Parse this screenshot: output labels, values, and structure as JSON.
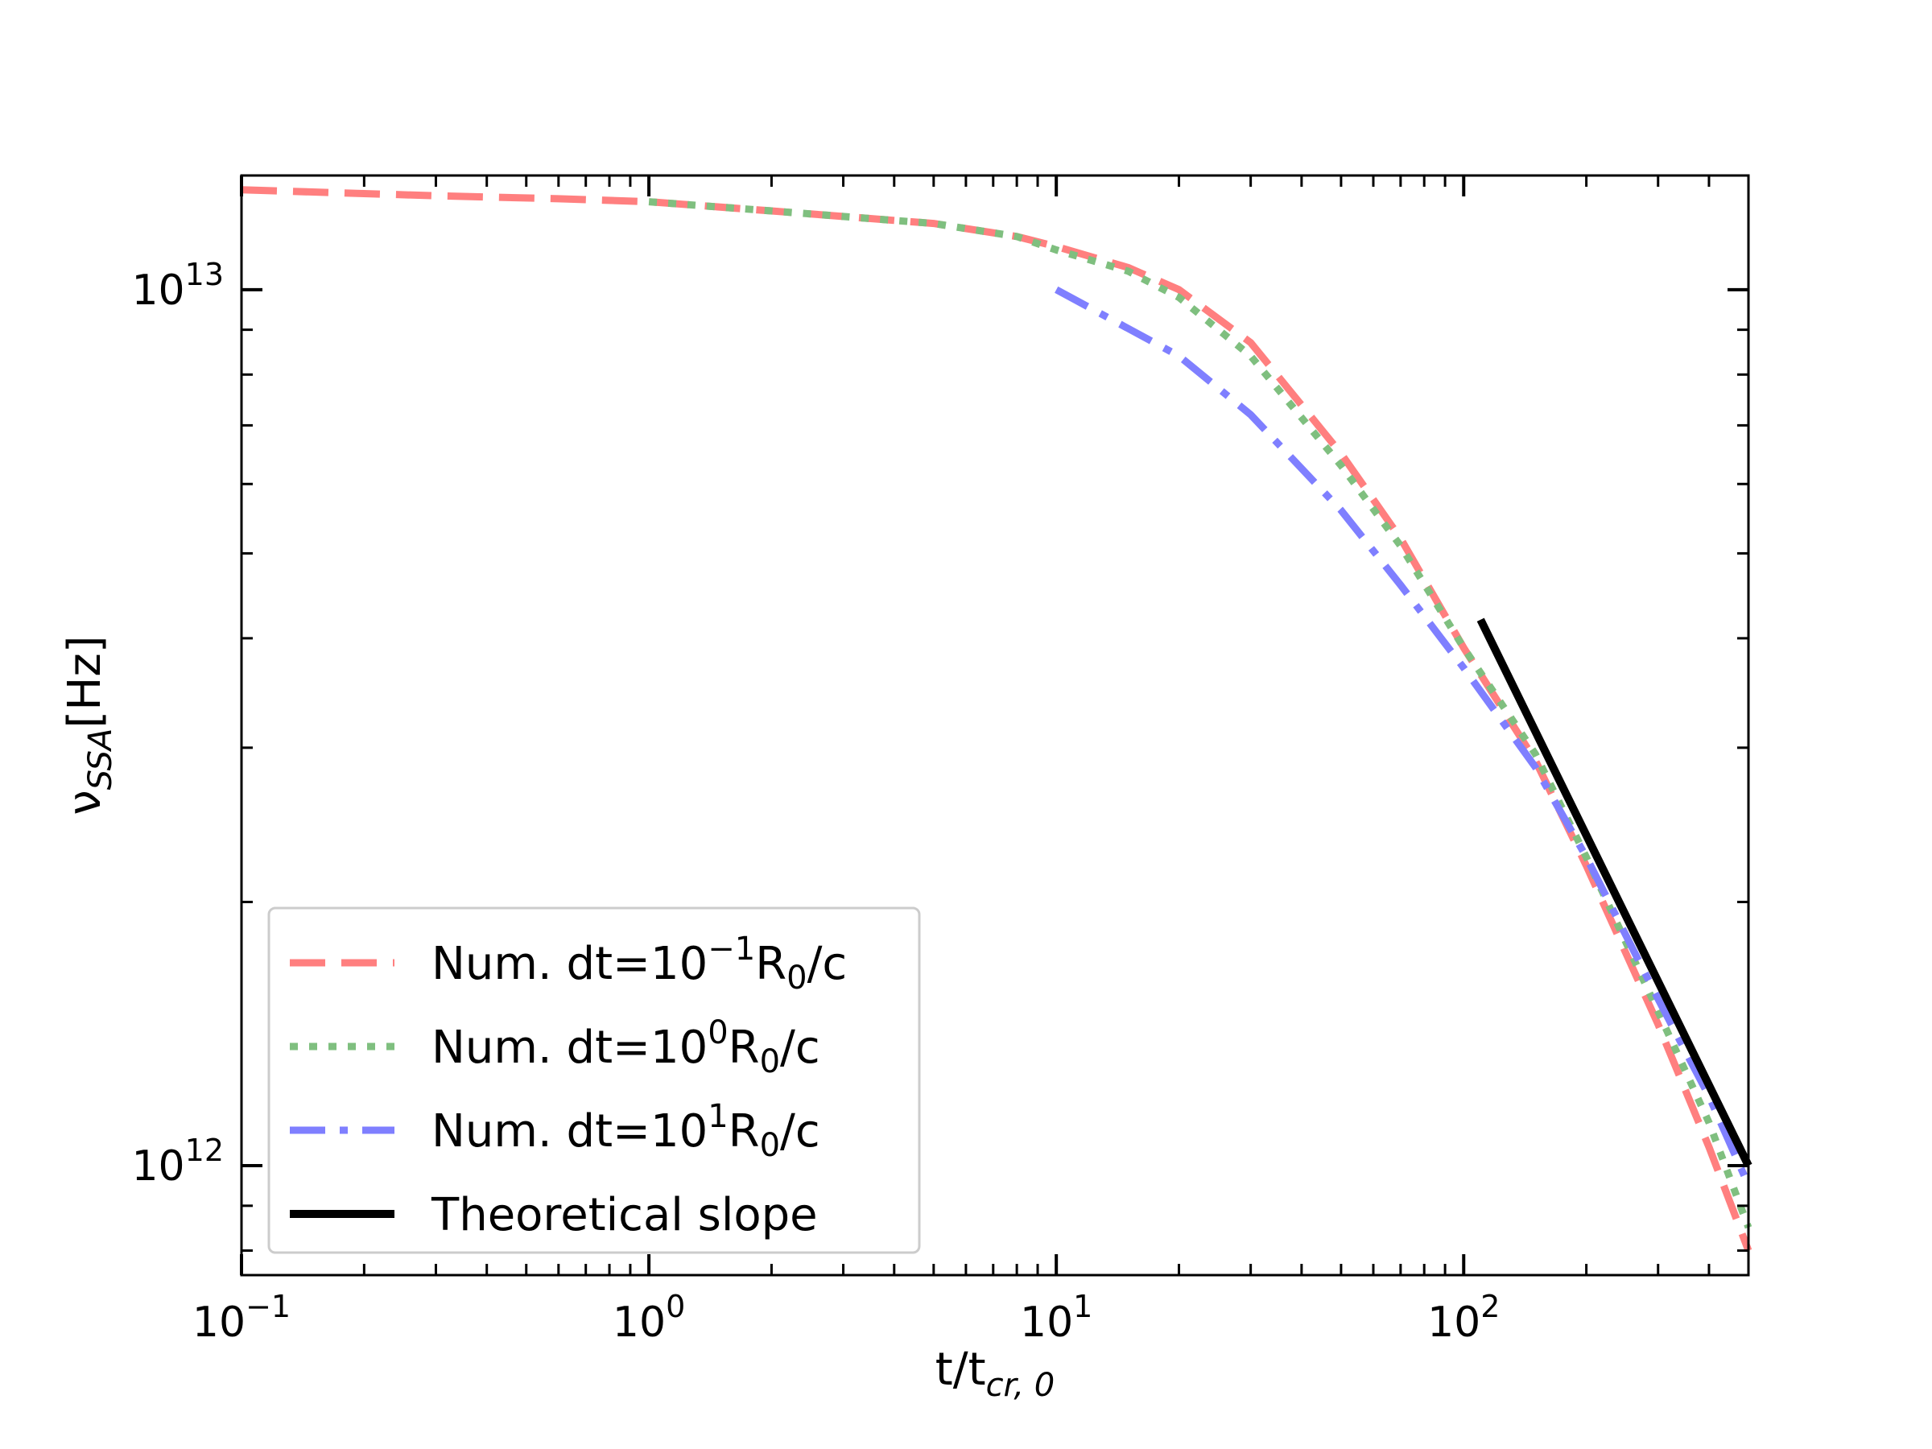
{
  "chart_data": {
    "type": "line",
    "title": "",
    "xlabel": {
      "main": "t/t",
      "sub": "cr, 0"
    },
    "ylabel": {
      "main": "ν",
      "sub": "SSA",
      "tail": "[Hz]"
    },
    "xscale": "log",
    "yscale": "log",
    "xlim": [
      0.1,
      500
    ],
    "ylim": [
      750000000000.0,
      13500000000000.0
    ],
    "x_tick_labels": [
      {
        "value": 0.1,
        "base": "10",
        "exp": "−1"
      },
      {
        "value": 1,
        "base": "10",
        "exp": "0"
      },
      {
        "value": 10,
        "base": "10",
        "exp": "1"
      },
      {
        "value": 100,
        "base": "10",
        "exp": "2"
      }
    ],
    "y_tick_labels": [
      {
        "value": 1000000000000.0,
        "base": "10",
        "exp": "12"
      },
      {
        "value": 10000000000000.0,
        "base": "10",
        "exp": "13"
      }
    ],
    "grid": false,
    "legend_position": "lower-left",
    "series": [
      {
        "name": {
          "pre": "Num. dt=10",
          "exp": "−1",
          "mid": "R",
          "sub": "0",
          "post": "/c"
        },
        "color": "#ff7f7f",
        "style": "dashed",
        "x": [
          0.1,
          0.3,
          0.6,
          1,
          2,
          5,
          8,
          10,
          15,
          20,
          30,
          50,
          70,
          100,
          150,
          200,
          300,
          400,
          500
        ],
        "y": [
          13000000000000.0,
          12800000000000.0,
          12700000000000.0,
          12600000000000.0,
          12300000000000.0,
          11900000000000.0,
          11500000000000.0,
          11200000000000.0,
          10600000000000.0,
          10000000000000.0,
          8700000000000.0,
          6500000000000.0,
          5200000000000.0,
          3900000000000.0,
          2900000000000.0,
          2200000000000.0,
          1450000000000.0,
          1050000000000.0,
          800000000000.0
        ]
      },
      {
        "name": {
          "pre": "Num. dt=10",
          "exp": "0",
          "mid": "R",
          "sub": "0",
          "post": "/c"
        },
        "color": "#7fbf7f",
        "style": "dotted",
        "x": [
          1,
          2,
          5,
          8,
          10,
          15,
          20,
          30,
          50,
          70,
          100,
          150,
          200,
          300,
          400,
          500
        ],
        "y": [
          12600000000000.0,
          12300000000000.0,
          11900000000000.0,
          11500000000000.0,
          11100000000000.0,
          10500000000000.0,
          9800000000000.0,
          8400000000000.0,
          6300000000000.0,
          5100000000000.0,
          3900000000000.0,
          2950000000000.0,
          2250000000000.0,
          1500000000000.0,
          1120000000000.0,
          850000000000.0
        ]
      },
      {
        "name": {
          "pre": "Num. dt=10",
          "exp": "1",
          "mid": "R",
          "sub": "0",
          "post": "/c"
        },
        "color": "#7f7fff",
        "style": "dashdot",
        "x": [
          10,
          20,
          30,
          50,
          70,
          100,
          150,
          200,
          300,
          400,
          500
        ],
        "y": [
          10000000000000.0,
          8400000000000.0,
          7200000000000.0,
          5600000000000.0,
          4600000000000.0,
          3700000000000.0,
          2850000000000.0,
          2250000000000.0,
          1550000000000.0,
          1200000000000.0,
          950000000000.0
        ]
      },
      {
        "name": {
          "pre": "Theoretical slope",
          "exp": "",
          "mid": "",
          "sub": "",
          "post": ""
        },
        "color": "#000000",
        "style": "solid",
        "x": [
          110,
          500
        ],
        "y": [
          4200000000000.0,
          1000000000000.0
        ]
      }
    ]
  }
}
